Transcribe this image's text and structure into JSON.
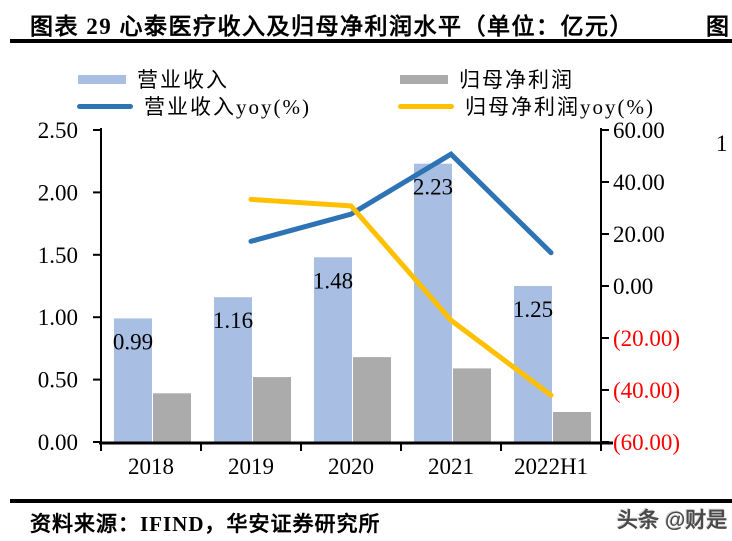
{
  "header": {
    "title": "图表 29 心泰医疗收入及归母净利润水平（单位：亿元）",
    "adjacent_title_fragment": "图"
  },
  "artifacts": {
    "right_edge_digit": "1"
  },
  "legend": {
    "items": [
      {
        "label": "营业收入",
        "swatch": "bar",
        "color": "#A9BEE3"
      },
      {
        "label": "归母净利润",
        "swatch": "bar",
        "color": "#ABABAB"
      },
      {
        "label": "营业收入yoy(%)",
        "swatch": "line",
        "color": "#2E74B5"
      },
      {
        "label": "归母净利润yoy(%)",
        "swatch": "line",
        "color": "#FFC000"
      }
    ]
  },
  "chart_data": {
    "type": "combo_bar_line",
    "title": "心泰医疗收入及归母净利润水平（单位：亿元）",
    "categories": [
      "2018",
      "2019",
      "2020",
      "2021",
      "2022H1"
    ],
    "series": [
      {
        "key": "revenue",
        "name": "营业收入",
        "type": "bar",
        "axis": "left",
        "color": "#A9BEE3",
        "values": [
          0.99,
          1.16,
          1.48,
          2.23,
          1.25
        ],
        "data_labels": [
          "0.99",
          "1.16",
          "1.48",
          "2.23",
          "1.25"
        ]
      },
      {
        "key": "net-profit",
        "name": "归母净利润",
        "type": "bar",
        "axis": "left",
        "color": "#ABABAB",
        "values": [
          0.39,
          0.52,
          0.68,
          0.59,
          0.24
        ]
      },
      {
        "key": "revenue-yoy",
        "name": "营业收入yoy(%)",
        "type": "line",
        "axis": "right",
        "color": "#2E74B5",
        "values": [
          null,
          17.2,
          27.6,
          50.7,
          12.8
        ]
      },
      {
        "key": "net-profit-yoy",
        "name": "归母净利润yoy(%)",
        "type": "line",
        "axis": "right",
        "color": "#FFC000",
        "values": [
          null,
          33.3,
          30.8,
          -13.2,
          -42.0
        ]
      }
    ],
    "left_axis": {
      "min": 0,
      "max": 2.5,
      "step": 0.5,
      "tick_labels_bottom_up": [
        "0.00",
        "0.50",
        "1.00",
        "1.50",
        "2.00",
        "2.50"
      ]
    },
    "right_axis": {
      "min": -60,
      "max": 60,
      "step": 20,
      "tick_labels_top_down": [
        "60.00",
        "40.00",
        "20.00",
        "0.00",
        "(20.00)",
        "(40.00)",
        "(60.00)"
      ],
      "negative_label_color": "#FF0000"
    },
    "grid": false,
    "legend_position": "top"
  },
  "footer": {
    "source": "资料来源：IFIND，华安证券研究所",
    "watermark": "头条 @财是"
  },
  "colors": {
    "axis": "#000000",
    "text": "#000000",
    "negative_tick": "#FF0000",
    "rule": "#000000",
    "background": "#FFFFFF"
  }
}
